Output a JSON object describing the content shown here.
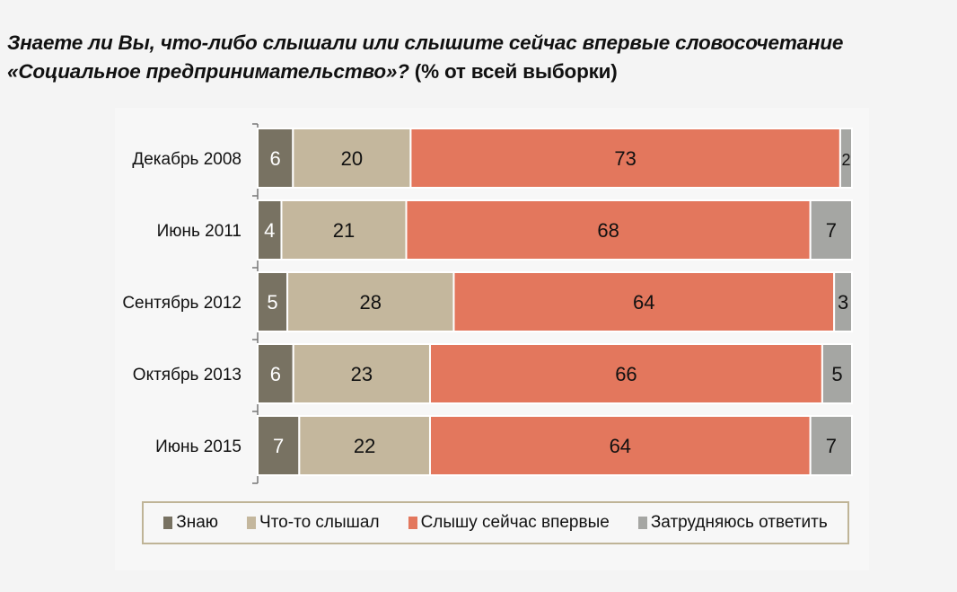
{
  "title": {
    "line1": "Знаете ли Вы, что-либо слышали или слышите сейчас впервые словосочетание",
    "line2_italic": "«Социальное предпринимательство»?",
    "line2_plain": " (% от всей выборки)"
  },
  "chart_data": {
    "type": "bar",
    "orientation": "horizontal",
    "stacked": true,
    "title": "Знаете ли Вы, что-либо слышали или слышите сейчас впервые словосочетание «Социальное предпринимательство»? (% от всей выборки)",
    "categories": [
      "Декабрь 2008",
      "Июнь 2011",
      "Сентябрь 2012",
      "Октябрь 2013",
      "Июнь 2015"
    ],
    "series": [
      {
        "name": "Знаю",
        "color": "#787262",
        "label_color": "#ffffff",
        "values": [
          6,
          4,
          5,
          6,
          7
        ]
      },
      {
        "name": "Что-то слышал",
        "color": "#c4b79d",
        "label_color": "#111111",
        "values": [
          20,
          21,
          28,
          23,
          22
        ]
      },
      {
        "name": "Слышу сейчас впервые",
        "color": "#e3775d",
        "label_color": "#111111",
        "values": [
          73,
          68,
          64,
          66,
          64
        ]
      },
      {
        "name": "Затрудняюсь ответить",
        "color": "#a5a6a3",
        "label_color": "#111111",
        "values": [
          2,
          7,
          3,
          5,
          7
        ]
      }
    ],
    "xlim": [
      0,
      101
    ],
    "grid": false,
    "legend_position": "bottom"
  }
}
